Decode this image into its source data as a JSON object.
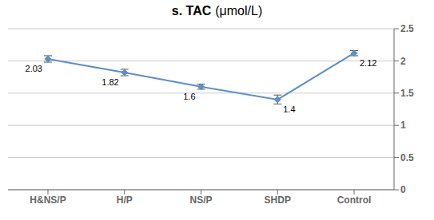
{
  "chart_data": {
    "type": "line",
    "title": "s. TAC",
    "subtitle": "(μmol/L)",
    "categories": [
      "H&NS/P",
      "H/P",
      "NS/P",
      "SHDP",
      "Control"
    ],
    "values": [
      2.03,
      1.82,
      1.6,
      1.4,
      2.12
    ],
    "errors": [
      0.05,
      0.05,
      0.04,
      0.07,
      0.04
    ],
    "color": "#5b8fc9",
    "marker": "diamond",
    "ylim": [
      0,
      2.5
    ],
    "yticks": [
      0,
      0.5,
      1,
      1.5,
      2,
      2.5
    ],
    "grid": true,
    "data_labels": true
  }
}
